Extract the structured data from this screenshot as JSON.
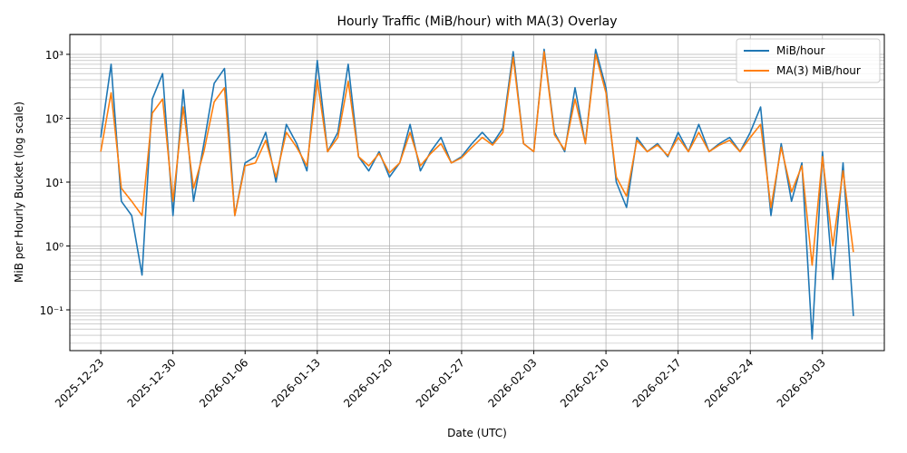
{
  "chart_data": {
    "type": "line",
    "title": "Hourly Traffic (MiB/hour) with MA(3) Overlay",
    "xlabel": "Date (UTC)",
    "ylabel": "MiB per Hourly Bucket (log scale)",
    "log_y": true,
    "grid": true,
    "legend": "upper right",
    "xlim": [
      "2025-12-20",
      "2026-03-09"
    ],
    "xticks": [
      "2025-12-23",
      "2025-12-30",
      "2026-01-06",
      "2026-01-13",
      "2026-01-20",
      "2026-01-27",
      "2026-02-03",
      "2026-02-10",
      "2026-02-17",
      "2026-02-24",
      "2026-03-03"
    ],
    "ylim": [
      0.023,
      2050
    ],
    "yticks": [
      {
        "value": 0.1,
        "label": "10⁻¹"
      },
      {
        "value": 1,
        "label": "10⁰"
      },
      {
        "value": 10,
        "label": "10¹"
      },
      {
        "value": 100,
        "label": "10²"
      },
      {
        "value": 1000,
        "label": "10³"
      }
    ],
    "x": [
      "2025-12-23",
      "2025-12-24",
      "2025-12-25",
      "2025-12-26",
      "2025-12-27",
      "2025-12-28",
      "2025-12-29",
      "2025-12-30",
      "2025-12-31",
      "2026-01-01",
      "2026-01-02",
      "2026-01-03",
      "2026-01-04",
      "2026-01-05",
      "2026-01-06",
      "2026-01-07",
      "2026-01-08",
      "2026-01-09",
      "2026-01-10",
      "2026-01-11",
      "2026-01-12",
      "2026-01-13",
      "2026-01-14",
      "2026-01-15",
      "2026-01-16",
      "2026-01-17",
      "2026-01-18",
      "2026-01-19",
      "2026-01-20",
      "2026-01-21",
      "2026-01-22",
      "2026-01-23",
      "2026-01-24",
      "2026-01-25",
      "2026-01-26",
      "2026-01-27",
      "2026-01-28",
      "2026-01-29",
      "2026-01-30",
      "2026-01-31",
      "2026-02-01",
      "2026-02-02",
      "2026-02-03",
      "2026-02-04",
      "2026-02-05",
      "2026-02-06",
      "2026-02-07",
      "2026-02-08",
      "2026-02-09",
      "2026-02-10",
      "2026-02-11",
      "2026-02-12",
      "2026-02-13",
      "2026-02-14",
      "2026-02-15",
      "2026-02-16",
      "2026-02-17",
      "2026-02-18",
      "2026-02-19",
      "2026-02-20",
      "2026-02-21",
      "2026-02-22",
      "2026-02-23",
      "2026-02-24",
      "2026-02-25",
      "2026-02-26",
      "2026-02-27",
      "2026-02-28",
      "2026-03-01",
      "2026-03-02",
      "2026-03-03",
      "2026-03-04",
      "2026-03-05",
      "2026-03-06"
    ],
    "series": [
      {
        "name": "MiB/hour",
        "color": "#1f77b4",
        "values": [
          50,
          700,
          5,
          3,
          0.35,
          200,
          500,
          3,
          280,
          5,
          40,
          350,
          600,
          3,
          20,
          25,
          60,
          10,
          80,
          40,
          15,
          800,
          30,
          60,
          700,
          25,
          15,
          30,
          12,
          20,
          80,
          15,
          30,
          50,
          20,
          25,
          40,
          60,
          40,
          70,
          1100,
          40,
          30,
          1200,
          60,
          30,
          300,
          40,
          1200,
          300,
          10,
          4,
          50,
          30,
          40,
          25,
          60,
          30,
          80,
          30,
          40,
          50,
          30,
          60,
          150,
          3,
          40,
          5,
          20,
          0.035,
          30,
          0.3,
          20,
          0.08
        ]
      },
      {
        "name": "MA(3) MiB/hour",
        "color": "#ff7f0e",
        "values": [
          30,
          250,
          8,
          5,
          3,
          120,
          200,
          5,
          150,
          8,
          30,
          180,
          300,
          3,
          18,
          20,
          45,
          12,
          60,
          35,
          18,
          400,
          30,
          50,
          380,
          25,
          18,
          28,
          14,
          20,
          60,
          18,
          28,
          40,
          20,
          24,
          35,
          50,
          38,
          60,
          900,
          40,
          30,
          1100,
          55,
          32,
          200,
          40,
          1000,
          250,
          12,
          6,
          45,
          30,
          38,
          26,
          50,
          30,
          60,
          30,
          38,
          45,
          30,
          50,
          80,
          4,
          35,
          7,
          18,
          0.5,
          25,
          1,
          15,
          0.8
        ]
      }
    ]
  }
}
